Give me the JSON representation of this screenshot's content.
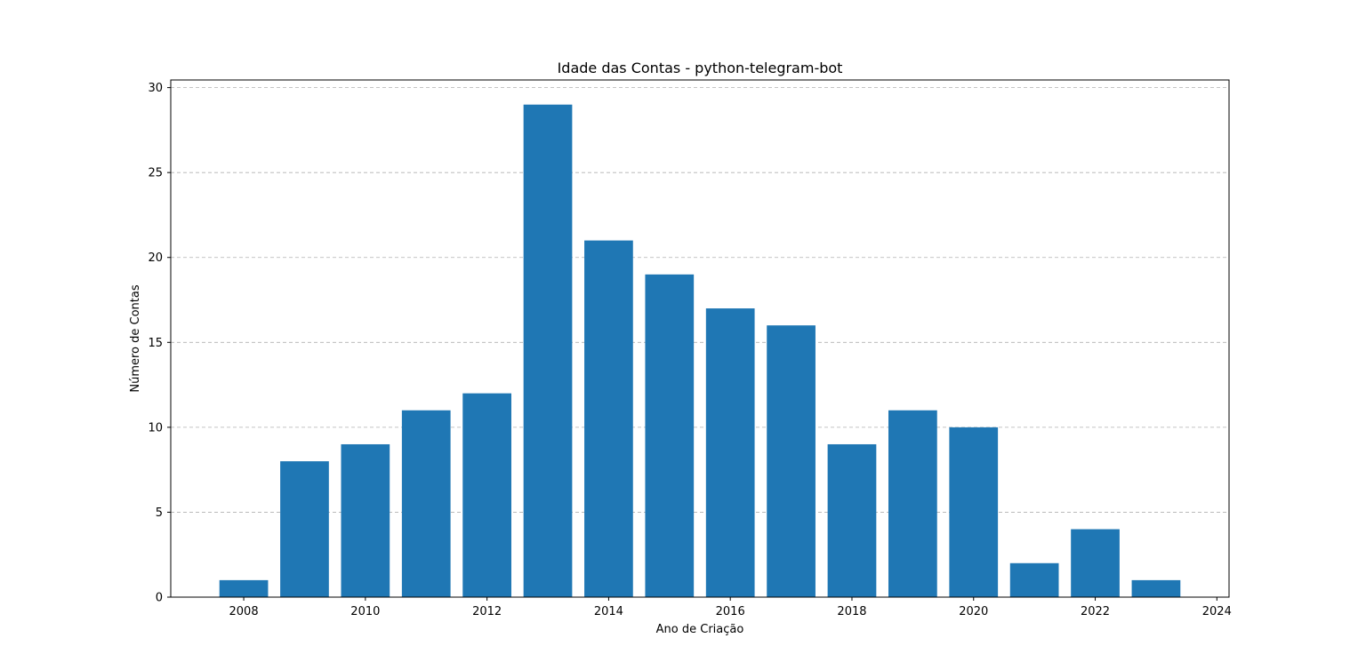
{
  "chart_data": {
    "type": "bar",
    "title": "Idade das Contas - python-telegram-bot",
    "xlabel": "Ano de Criação",
    "ylabel": "Número de Contas",
    "x": [
      2008,
      2009,
      2010,
      2011,
      2012,
      2013,
      2014,
      2015,
      2016,
      2017,
      2018,
      2019,
      2020,
      2021,
      2022,
      2023
    ],
    "values": [
      1,
      8,
      9,
      11,
      12,
      29,
      21,
      19,
      17,
      16,
      9,
      11,
      10,
      2,
      4,
      1
    ],
    "xlim": [
      2006.8,
      2024.2
    ],
    "ylim": [
      0,
      30.45
    ],
    "xticks": [
      2008,
      2010,
      2012,
      2014,
      2016,
      2018,
      2020,
      2022,
      2024
    ],
    "yticks": [
      0,
      5,
      10,
      15,
      20,
      25,
      30
    ],
    "bar_width": 0.8,
    "grid": "y",
    "color": "#1f77b4"
  }
}
